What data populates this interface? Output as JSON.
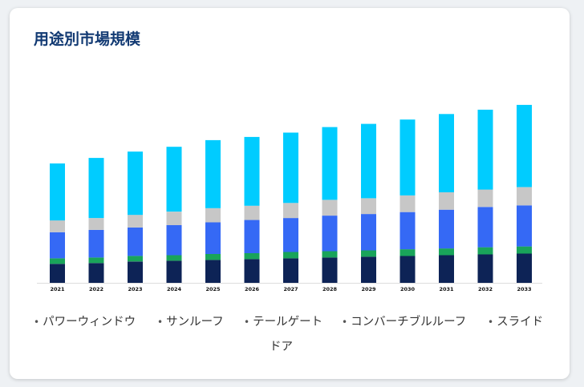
{
  "title": "用途別市場規模",
  "colors": {
    "accent": "#123a73",
    "segments": [
      "#0d2356",
      "#19a45a",
      "#3569f5",
      "#c7c7c7",
      "#00ccff"
    ]
  },
  "legend": {
    "items": [
      "パワーウィンドウ",
      "サンルーフ",
      "テールゲート",
      "コンバーチブルルーフ",
      "スライド"
    ],
    "wrap_text": "ドア"
  },
  "chart_data": {
    "type": "bar",
    "stacked": true,
    "title": "用途別市場規模",
    "xlabel": "",
    "ylabel": "",
    "grid": false,
    "legend_position": "bottom",
    "categories": [
      "2021",
      "2022",
      "2023",
      "2024",
      "2025",
      "2026",
      "2027",
      "2028",
      "2029",
      "2030",
      "2031",
      "2032",
      "2033"
    ],
    "series": [
      {
        "name": "パワーウィンドウ",
        "values": [
          24,
          25,
          27,
          28,
          29,
          30,
          31,
          32,
          33,
          34,
          35,
          36,
          37
        ]
      },
      {
        "name": "サンルーフ",
        "values": [
          7,
          7,
          7,
          7,
          7.5,
          7.5,
          8,
          8,
          8,
          8.5,
          8.5,
          9,
          9
        ]
      },
      {
        "name": "テールゲート",
        "values": [
          33,
          35,
          36,
          38,
          40,
          42,
          43,
          45,
          46,
          47,
          49,
          51,
          52
        ]
      },
      {
        "name": "コンバーチブルルーフ",
        "values": [
          15,
          15,
          16,
          17,
          18,
          18,
          19,
          20,
          20,
          21,
          22,
          22,
          23
        ]
      },
      {
        "name": "スライドドア",
        "values": [
          72,
          76,
          80,
          82,
          86,
          87,
          89,
          92,
          94,
          96,
          99,
          101,
          104
        ]
      }
    ],
    "ylim": [
      0,
      230
    ]
  }
}
